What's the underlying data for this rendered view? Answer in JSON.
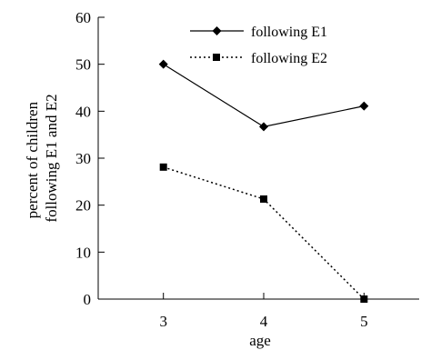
{
  "chart_data": {
    "type": "line",
    "x": [
      3,
      4,
      5
    ],
    "xlabel": "age",
    "ylabel": "percent of children following E1 and E2",
    "ylabel_lines": [
      "percent of children",
      "following E1 and E2"
    ],
    "xlim": [
      2.35,
      5.55
    ],
    "ylim": [
      0,
      60
    ],
    "xticks": [
      3,
      4,
      5
    ],
    "yticks": [
      0,
      10,
      20,
      30,
      40,
      50,
      60
    ],
    "grid": false,
    "legend_position": "top-right",
    "series": [
      {
        "name": "following E1",
        "values": [
          50,
          36.7,
          41.1
        ],
        "marker": "diamond",
        "line_style": "solid",
        "color": "#000000"
      },
      {
        "name": "following E2",
        "values": [
          28.1,
          21.3,
          0
        ],
        "marker": "square",
        "line_style": "dotted",
        "color": "#000000"
      }
    ]
  }
}
